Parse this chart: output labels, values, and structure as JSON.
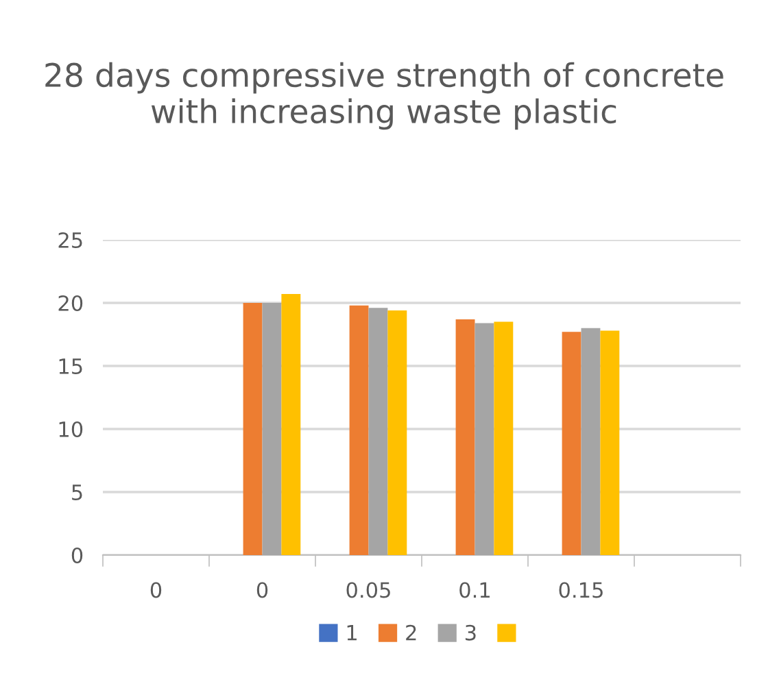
{
  "chart_data": {
    "type": "bar",
    "title": "28 days compressive strength of concrete with increasing waste plastic",
    "categories": [
      "0",
      "0",
      "0.05",
      "0.1",
      "0.15",
      null
    ],
    "series": [
      {
        "name": "1",
        "color": "#4472c4",
        "values": [
          null,
          null,
          null,
          null,
          null,
          null
        ]
      },
      {
        "name": "2",
        "color": "#ed7d31",
        "values": [
          null,
          20.0,
          19.8,
          18.7,
          17.7,
          null
        ]
      },
      {
        "name": "3",
        "color": "#a5a5a5",
        "values": [
          null,
          20.0,
          19.6,
          18.4,
          18.0,
          null
        ]
      },
      {
        "color": "#ffc000",
        "values": [
          null,
          20.7,
          19.4,
          18.5,
          17.8,
          null
        ]
      }
    ],
    "ylim": [
      0,
      25
    ],
    "yticks": [
      0,
      5,
      10,
      15,
      20,
      25
    ],
    "grid": "y",
    "legend": "bottom"
  }
}
